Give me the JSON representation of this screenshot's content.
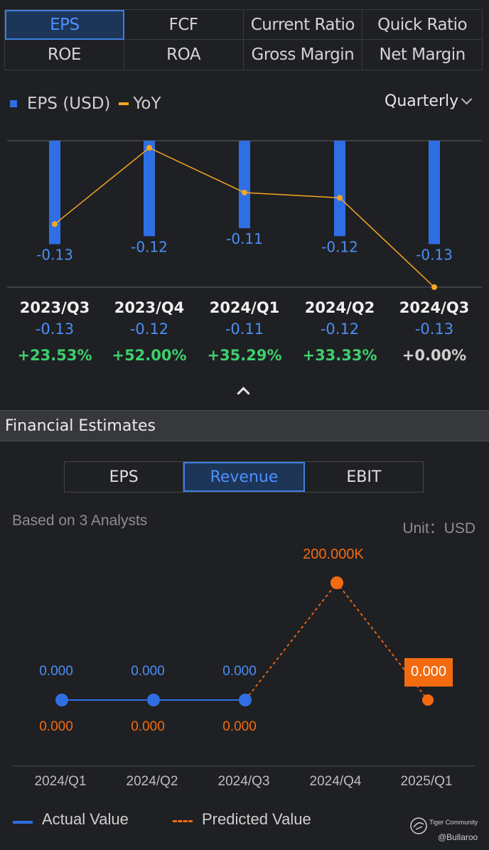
{
  "tabs": [
    {
      "label": "EPS",
      "active": true
    },
    {
      "label": "FCF",
      "active": false
    },
    {
      "label": "Current Ratio",
      "active": false
    },
    {
      "label": "Quick Ratio",
      "active": false
    },
    {
      "label": "ROE",
      "active": false
    },
    {
      "label": "ROA",
      "active": false
    },
    {
      "label": "Gross Margin",
      "active": false
    },
    {
      "label": "Net Margin",
      "active": false
    }
  ],
  "legend": {
    "eps": "EPS (USD)",
    "yoy": "YoY"
  },
  "period": {
    "label": "Quarterly"
  },
  "colors": {
    "bar": "#2f6fe4",
    "yoy_line": "#f5a623",
    "positive": "#3ecf6c",
    "actual": "#2f6fe4",
    "predicted": "#f36b10"
  },
  "chart_data": [
    {
      "type": "bar",
      "categories": [
        "2023/Q3",
        "2023/Q4",
        "2024/Q1",
        "2024/Q2",
        "2024/Q3"
      ],
      "series": [
        {
          "name": "EPS (USD)",
          "values": [
            -0.13,
            -0.12,
            -0.11,
            -0.12,
            -0.13
          ],
          "labels": [
            "-0.13",
            "-0.12",
            "-0.11",
            "-0.12",
            "-0.13"
          ]
        },
        {
          "name": "YoY",
          "type": "line",
          "values": [
            23.53,
            52.0,
            35.29,
            33.33,
            0.0
          ],
          "labels": [
            "+23.53%",
            "+52.00%",
            "+35.29%",
            "+33.33%",
            "+0.00%"
          ]
        }
      ]
    },
    {
      "type": "line",
      "categories": [
        "2024/Q1",
        "2024/Q2",
        "2024/Q3",
        "2024/Q4",
        "2025/Q1"
      ],
      "series": [
        {
          "name": "Actual Value",
          "values": [
            0,
            0,
            0,
            null,
            null
          ],
          "labels": [
            "0.000",
            "0.000",
            "0.000",
            "",
            ""
          ]
        },
        {
          "name": "Predicted Value",
          "values": [
            0,
            0,
            0,
            200000,
            0
          ],
          "labels": [
            "0.000",
            "0.000",
            "0.000",
            "200.000K",
            "0.000"
          ]
        }
      ]
    }
  ],
  "section": {
    "title": "Financial Estimates"
  },
  "estimate_tabs": [
    {
      "label": "EPS",
      "active": false
    },
    {
      "label": "Revenue",
      "active": true
    },
    {
      "label": "EBIT",
      "active": false
    }
  ],
  "estimates": {
    "analysts": "Based on 3 Analysts",
    "unit": "Unit：USD"
  },
  "legend2": {
    "actual": "Actual Value",
    "predicted": "Predicted Value"
  },
  "watermark": {
    "brand": "Tiger Community",
    "user": "@Bullaroo"
  }
}
